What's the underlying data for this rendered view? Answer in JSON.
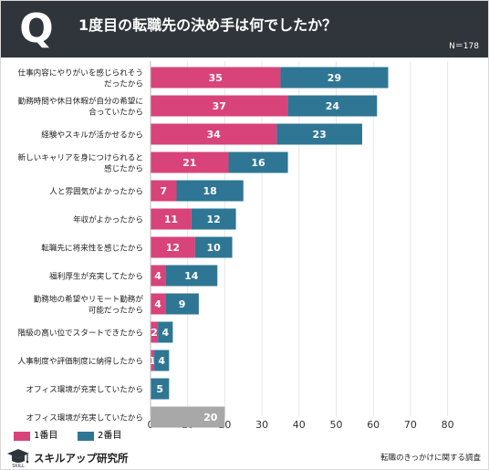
{
  "header": {
    "q_letter": "Q",
    "title": "1度目の転職先の決め手は何でしたか？",
    "sample_size": "N＝178"
  },
  "colors": {
    "header_bg": "#2f353b",
    "first_choice": "#d8437a",
    "second_choice": "#2e7694",
    "single_bar": "#a8a8a8",
    "grid": "#e6e6e6"
  },
  "chart_data": {
    "type": "bar",
    "orientation": "horizontal",
    "stacked": true,
    "categories": [
      [
        "仕事内容にやりがいを感じられそう",
        "だったから"
      ],
      [
        "勤務時間や休日休暇が自分の希望に",
        "合っていたから"
      ],
      [
        "経験やスキルが活かせるから"
      ],
      [
        "新しいキャリアを身につけられると",
        "感じたから"
      ],
      [
        "人と雰囲気がよかったから"
      ],
      [
        "年収がよかったから"
      ],
      [
        "転職先に将来性を感じたから"
      ],
      [
        "福利厚生が充実してたから"
      ],
      [
        "勤務地の希望やリモート勤務が",
        "可能だったから"
      ],
      [
        "階級の高い位でスタートできたから"
      ],
      [
        "人事制度や評価制度に納得したから"
      ],
      [
        "オフィス環境が充実していたから"
      ],
      [
        "オフィス環境が充実していたから"
      ]
    ],
    "series": [
      {
        "name": "1番目",
        "color": "#d8437a",
        "values": [
          35,
          37,
          34,
          21,
          7,
          11,
          12,
          4,
          4,
          2,
          1,
          0,
          null
        ]
      },
      {
        "name": "2番目",
        "color": "#2e7694",
        "values": [
          29,
          24,
          23,
          16,
          18,
          12,
          10,
          14,
          9,
          4,
          4,
          5,
          null
        ]
      }
    ],
    "single_values": [
      null,
      null,
      null,
      null,
      null,
      null,
      null,
      null,
      null,
      null,
      null,
      null,
      20
    ],
    "single_color": "#a8a8a8",
    "x_ticks": [
      0,
      10,
      20,
      30,
      40,
      50,
      60,
      70,
      80
    ],
    "xlim": [
      0,
      80
    ],
    "grid": true,
    "legend_position": "bottom-left"
  },
  "legend": [
    {
      "label": "1番目",
      "color": "#d8437a"
    },
    {
      "label": "2番目",
      "color": "#2e7694"
    }
  ],
  "footer": {
    "brand": "スキルアップ研究所",
    "source": "転職のきっかけに関する調査"
  }
}
